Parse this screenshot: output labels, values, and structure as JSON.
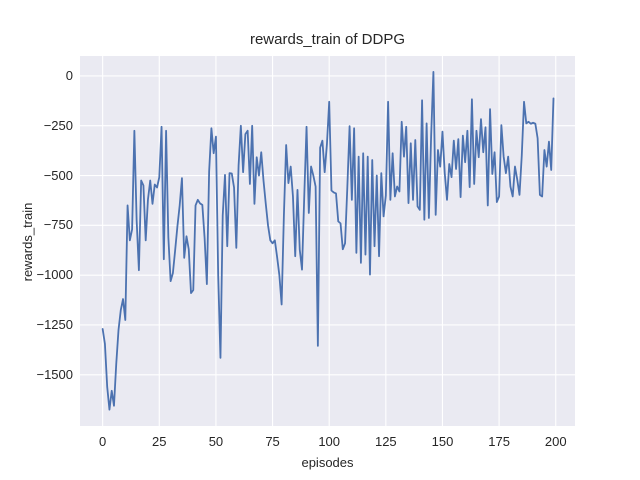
{
  "figure": {
    "background_color": "#ffffff",
    "axes_background_color": "#eaeaf2",
    "grid_color": "#ffffff",
    "text_color": "#262626"
  },
  "chart_data": {
    "type": "line",
    "title": "rewards_train of DDPG",
    "xlabel": "episodes",
    "ylabel": "rewards_train",
    "legend": null,
    "grid": true,
    "line_color": "#4c72b0",
    "line_width": 1.8,
    "x_ticks": [
      0,
      25,
      50,
      75,
      100,
      125,
      150,
      175,
      200
    ],
    "x_tick_labels": [
      "0",
      "25",
      "50",
      "75",
      "100",
      "125",
      "150",
      "175",
      "200"
    ],
    "y_ticks": [
      0,
      -250,
      -500,
      -750,
      -1000,
      -1250,
      -1500
    ],
    "y_tick_labels": [
      "0",
      "−250",
      "−500",
      "−750",
      "−1000",
      "−1250",
      "−1500"
    ],
    "xlim": [
      -10,
      208.5
    ],
    "ylim": [
      -1757,
      100
    ],
    "x_is_index": true,
    "x_start": 0,
    "values": [
      -1270,
      -1345,
      -1560,
      -1675,
      -1580,
      -1655,
      -1445,
      -1275,
      -1175,
      -1120,
      -1225,
      -650,
      -825,
      -770,
      -275,
      -725,
      -975,
      -525,
      -550,
      -825,
      -620,
      -525,
      -642,
      -545,
      -560,
      -508,
      -255,
      -920,
      -275,
      -810,
      -1030,
      -990,
      -875,
      -755,
      -650,
      -513,
      -913,
      -805,
      -870,
      -1090,
      -1075,
      -650,
      -622,
      -640,
      -647,
      -813,
      -1045,
      -480,
      -263,
      -388,
      -305,
      -1000,
      -1415,
      -700,
      -497,
      -855,
      -488,
      -490,
      -560,
      -863,
      -450,
      -250,
      -483,
      -292,
      -275,
      -542,
      -250,
      -642,
      -408,
      -500,
      -383,
      -525,
      -642,
      -750,
      -825,
      -840,
      -825,
      -908,
      -1000,
      -1147,
      -700,
      -347,
      -538,
      -455,
      -605,
      -905,
      -572,
      -872,
      -972,
      -600,
      -255,
      -688,
      -455,
      -500,
      -555,
      -1355,
      -360,
      -325,
      -483,
      -342,
      -130,
      -575,
      -585,
      -590,
      -730,
      -740,
      -870,
      -840,
      -560,
      -252,
      -622,
      -263,
      -888,
      -405,
      -938,
      -388,
      -897,
      -405,
      -997,
      -422,
      -855,
      -500,
      -905,
      -488,
      -705,
      -600,
      -130,
      -622,
      -388,
      -605,
      -555,
      -580,
      -230,
      -405,
      -255,
      -638,
      -338,
      -622,
      -322,
      -655,
      -672,
      -122,
      -722,
      -238,
      -713,
      -300,
      20,
      -697,
      -372,
      -455,
      -280,
      -488,
      -622,
      -442,
      -508,
      -325,
      -467,
      -317,
      -608,
      -300,
      -433,
      -275,
      -558,
      -117,
      -542,
      -275,
      -408,
      -217,
      -383,
      -258,
      -650,
      -167,
      -492,
      -383,
      -633,
      -605,
      -247,
      -405,
      -488,
      -405,
      -555,
      -605,
      -455,
      -520,
      -597,
      -400,
      -130,
      -238,
      -230,
      -240,
      -235,
      -240,
      -313,
      -597,
      -605,
      -372,
      -455,
      -330,
      -472,
      -113
    ]
  }
}
